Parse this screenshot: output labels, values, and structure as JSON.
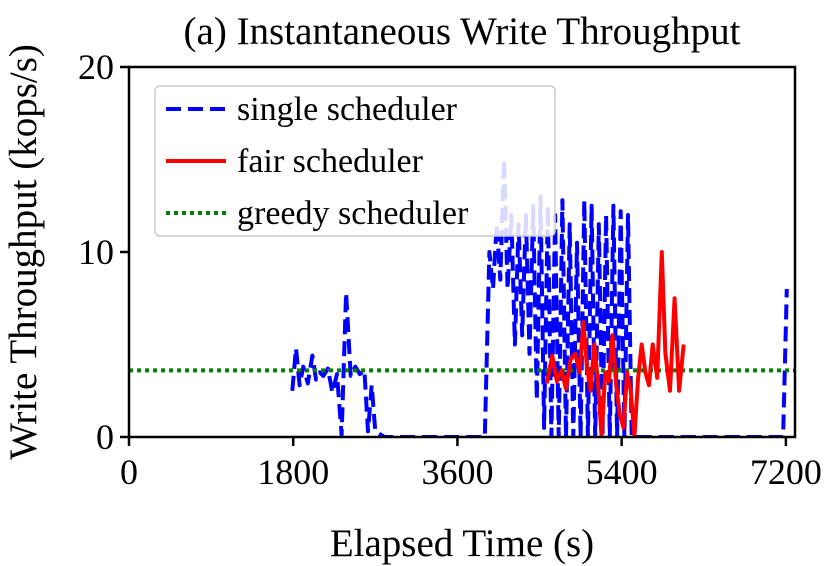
{
  "chart_data": {
    "type": "line",
    "title": "(a) Instantaneous Write Throughput",
    "xlabel": "Elapsed Time (s)",
    "ylabel": "Write Throughput (kops/s)",
    "xlim": [
      0,
      7300
    ],
    "ylim": [
      0,
      20
    ],
    "xticks": [
      0,
      1800,
      3600,
      5400,
      7200
    ],
    "xtick_labels": [
      "0",
      "1800",
      "3600",
      "5400",
      "7200"
    ],
    "yticks": [
      0,
      10,
      20
    ],
    "ytick_labels": [
      "0",
      "10",
      "20"
    ],
    "grid": false,
    "legend_position": "upper-left",
    "series": [
      {
        "name": "single scheduler",
        "color": "#0000ff",
        "style": "dashed",
        "x": [
          1790,
          1830,
          1870,
          1910,
          1960,
          2010,
          2050,
          2090,
          2130,
          2180,
          2230,
          2280,
          2330,
          2380,
          2430,
          2480,
          2530,
          2580,
          2620,
          2660,
          2700,
          2800,
          3000,
          3300,
          3600,
          3900,
          3950,
          3990,
          4030,
          4070,
          4110,
          4150,
          4190,
          4230,
          4270,
          4310,
          4350,
          4390,
          4430,
          4470,
          4510,
          4550,
          4590,
          4630,
          4670,
          4710,
          4750,
          4790,
          4830,
          4870,
          4910,
          4950,
          4990,
          5030,
          5070,
          5110,
          5150,
          5190,
          5230,
          5270,
          5310,
          5350,
          5390,
          5430,
          5470,
          5510,
          5550,
          5590,
          5630,
          5670,
          5710,
          5750,
          5800,
          6000,
          6400,
          6800,
          7100,
          7170,
          7210
        ],
        "y": [
          2.5,
          4.8,
          2.8,
          3.8,
          2.9,
          4.4,
          3.1,
          3.5,
          3.3,
          3.7,
          2.4,
          3.4,
          0.1,
          7.8,
          3.3,
          3.8,
          3.4,
          3.6,
          0.3,
          2.8,
          0.3,
          0.0,
          0.0,
          0.0,
          0.0,
          0.0,
          10.0,
          8.0,
          11.5,
          8.5,
          15.0,
          8.0,
          12.0,
          5.0,
          11.5,
          5.5,
          12.0,
          4.5,
          12.5,
          2.0,
          13.0,
          0.5,
          12.5,
          0.0,
          12.0,
          0.0,
          12.8,
          0.0,
          11.5,
          0.0,
          10.5,
          0.0,
          12.8,
          0.0,
          12.5,
          0.0,
          11.5,
          0.0,
          12.0,
          0.0,
          12.5,
          0.0,
          12.2,
          0.0,
          12.0,
          0.0,
          0.0,
          0.0,
          0.0,
          0.0,
          0.0,
          0.0,
          0.0,
          0.0,
          0.0,
          0.0,
          0.0,
          0.0,
          8.0
        ]
      },
      {
        "name": "fair scheduler",
        "color": "#ff0000",
        "style": "solid",
        "x": [
          4580,
          4640,
          4690,
          4740,
          4790,
          4840,
          4890,
          4940,
          4980,
          5020,
          5060,
          5100,
          5140,
          5180,
          5220,
          5260,
          5300,
          5340,
          5380,
          5420,
          5460,
          5500,
          5540,
          5580,
          5620,
          5660,
          5700,
          5740,
          5790,
          5840,
          5880,
          5930,
          5980,
          6030,
          6080
        ],
        "y": [
          2.9,
          4.4,
          3.0,
          3.6,
          2.6,
          4.2,
          4.5,
          3.5,
          6.2,
          3.8,
          2.5,
          5.0,
          3.0,
          0.0,
          3.5,
          3.0,
          5.5,
          2.8,
          1.2,
          0.5,
          3.5,
          2.5,
          0.0,
          3.2,
          5.0,
          3.5,
          2.8,
          5.0,
          3.2,
          10.0,
          4.5,
          2.5,
          7.5,
          2.5,
          5.0
        ]
      },
      {
        "name": "greedy scheduler",
        "color": "#008000",
        "style": "dotted",
        "x": [
          0,
          7300
        ],
        "y": [
          3.6,
          3.6
        ]
      }
    ]
  }
}
